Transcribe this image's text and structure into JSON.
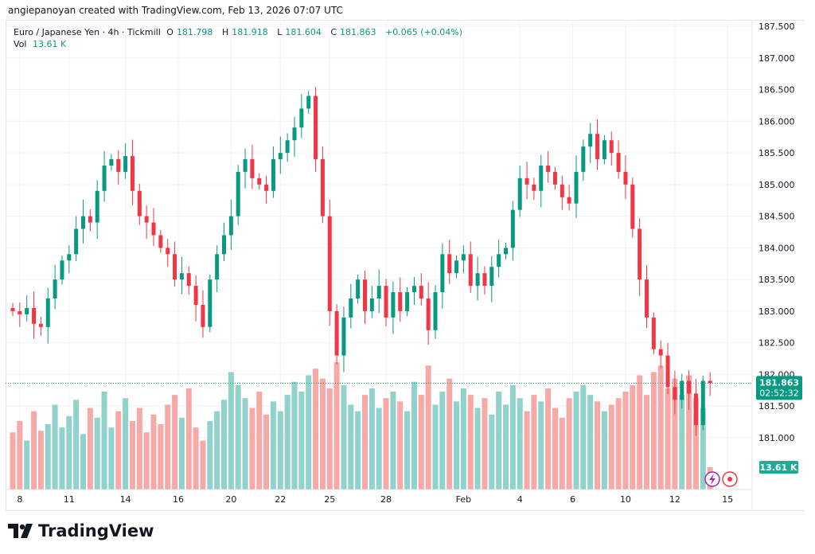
{
  "attribution": "angiepanoyan created with TradingView.com, Feb 13, 2026 07:07 UTC",
  "legend": {
    "symbol": "Euro / Japanese Yen · 4h · Tickmill",
    "o_label": "O",
    "o": "181.798",
    "h_label": "H",
    "h": "181.918",
    "l_label": "L",
    "l": "181.604",
    "c_label": "C",
    "c": "181.863",
    "change": "+0.065 (+0.04%)",
    "vol_label": "Vol",
    "vol": "13.61 K"
  },
  "price_tag": {
    "price": "181.863",
    "countdown": "02:52:32"
  },
  "vol_tag": "13.61 K",
  "logo_text": "TradingView",
  "colors": {
    "up": "#089981",
    "down": "#f23645",
    "vol_up": "#92d2cc",
    "vol_down": "#f7a9a7"
  },
  "chart_data": {
    "type": "candlestick",
    "title": "Euro / Japanese Yen · 4h · Tickmill",
    "ylim": [
      180.6,
      187.6
    ],
    "y_ticks": [
      "181.000",
      "181.500",
      "182.000",
      "182.500",
      "183.000",
      "183.500",
      "184.000",
      "184.500",
      "185.000",
      "185.500",
      "186.000",
      "186.500",
      "187.000",
      "187.500"
    ],
    "x_ticks": [
      {
        "label": "8",
        "i": 1
      },
      {
        "label": "11",
        "i": 8
      },
      {
        "label": "14",
        "i": 16
      },
      {
        "label": "16",
        "i": 23.5
      },
      {
        "label": "20",
        "i": 31
      },
      {
        "label": "22",
        "i": 38
      },
      {
        "label": "25",
        "i": 45
      },
      {
        "label": "28",
        "i": 53
      },
      {
        "label": "Feb",
        "i": 64
      },
      {
        "label": "4",
        "i": 72
      },
      {
        "label": "6",
        "i": 79.5
      },
      {
        "label": "10",
        "i": 87
      },
      {
        "label": "12",
        "i": 94
      },
      {
        "label": "15",
        "i": 101.5
      }
    ],
    "close": [
      183.0,
      182.95,
      183.05,
      182.8,
      182.75,
      183.2,
      183.5,
      183.8,
      183.9,
      184.3,
      184.5,
      184.4,
      184.9,
      185.3,
      185.4,
      185.2,
      185.45,
      184.9,
      184.5,
      184.4,
      184.2,
      184.0,
      183.9,
      183.5,
      183.6,
      183.4,
      183.1,
      182.75,
      183.5,
      183.9,
      184.2,
      184.5,
      185.2,
      185.4,
      185.1,
      185.0,
      184.9,
      185.4,
      185.5,
      185.7,
      185.9,
      186.2,
      186.4,
      185.4,
      184.5,
      183.0,
      182.3,
      182.9,
      183.2,
      183.5,
      183.0,
      183.2,
      183.4,
      182.9,
      183.3,
      183.0,
      183.3,
      183.4,
      183.2,
      182.7,
      183.3,
      183.9,
      183.6,
      183.8,
      183.9,
      183.4,
      183.6,
      183.4,
      183.7,
      183.9,
      184.0,
      184.6,
      185.1,
      185.0,
      184.9,
      185.3,
      185.2,
      185.0,
      184.8,
      184.7,
      185.2,
      185.6,
      185.8,
      185.4,
      185.7,
      185.5,
      185.2,
      185.0,
      184.3,
      183.5,
      182.9,
      182.4,
      182.3,
      181.8,
      181.6,
      181.9,
      181.7,
      181.2,
      181.9,
      181.863
    ],
    "volume_k": [
      35,
      42,
      30,
      48,
      36,
      40,
      52,
      38,
      45,
      55,
      34,
      50,
      44,
      60,
      38,
      48,
      56,
      42,
      50,
      35,
      46,
      40,
      52,
      58,
      44,
      62,
      38,
      30,
      42,
      48,
      55,
      72,
      64,
      56,
      50,
      60,
      46,
      54,
      48,
      58,
      66,
      60,
      70,
      74,
      68,
      62,
      78,
      64,
      52,
      48,
      58,
      62,
      50,
      56,
      60,
      54,
      48,
      66,
      58,
      76,
      52,
      60,
      68,
      54,
      62,
      58,
      50,
      56,
      46,
      60,
      52,
      64,
      56,
      48,
      58,
      54,
      62,
      50,
      44,
      56,
      60,
      64,
      58,
      54,
      48,
      52,
      56,
      60,
      64,
      70,
      58,
      72,
      76,
      62,
      68,
      58,
      70,
      56,
      50,
      13.61
    ]
  }
}
